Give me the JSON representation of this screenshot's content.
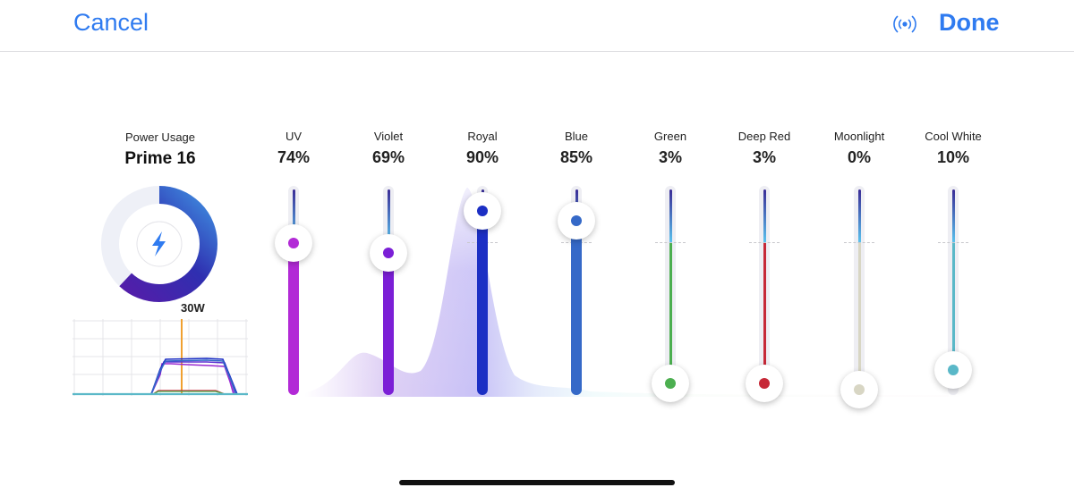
{
  "header": {
    "cancel_label": "Cancel",
    "done_label": "Done",
    "accent_color": "#2f7bf0",
    "signal_icon": "wireless-signal-icon"
  },
  "power": {
    "title": "Power Usage",
    "device": "Prime 16",
    "watts_label": "30W",
    "usage_fraction": 0.62,
    "icon": "lightning-bolt-icon"
  },
  "channels": [
    {
      "name": "UV",
      "value_label": "74%",
      "value": 74,
      "color": "#b22ad6",
      "style": "thick"
    },
    {
      "name": "Violet",
      "value_label": "69%",
      "value": 69,
      "color": "#7b1fd6",
      "style": "thick"
    },
    {
      "name": "Royal",
      "value_label": "90%",
      "value": 90,
      "color": "#1c2fc4",
      "style": "thick"
    },
    {
      "name": "Blue",
      "value_label": "85%",
      "value": 85,
      "color": "#3569c8",
      "style": "thick"
    },
    {
      "name": "Green",
      "value_label": "3%",
      "value": 3,
      "color": "#4caf50",
      "style": "thin"
    },
    {
      "name": "Deep Red",
      "value_label": "3%",
      "value": 3,
      "color": "#c62837",
      "style": "thin"
    },
    {
      "name": "Moonlight",
      "value_label": "0%",
      "value": 0,
      "color": "#d8d6c4",
      "style": "thin"
    },
    {
      "name": "Cool White",
      "value_label": "10%",
      "value": 10,
      "color": "#5ab8c8",
      "style": "thin"
    }
  ]
}
